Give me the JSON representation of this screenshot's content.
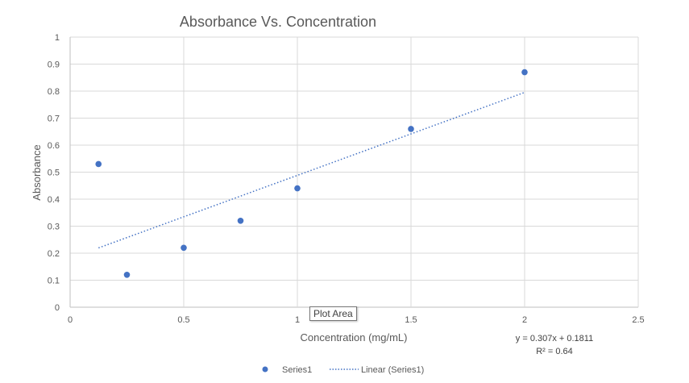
{
  "chart_data": {
    "type": "scatter",
    "title": "Absorbance Vs. Concentration",
    "xlabel": "Concentration (mg/mL)",
    "ylabel": "Absorbance",
    "xlim": [
      0,
      2.5
    ],
    "ylim": [
      0,
      1
    ],
    "x_ticks": [
      "0",
      "0.5",
      "1",
      "1.5",
      "2",
      "2.5"
    ],
    "y_ticks": [
      "0",
      "0.1",
      "0.2",
      "0.3",
      "0.4",
      "0.5",
      "0.6",
      "0.7",
      "0.8",
      "0.9",
      "1"
    ],
    "grid": true,
    "legend_position": "bottom",
    "series": [
      {
        "name": "Series1",
        "color": "#4472C4",
        "x": [
          0.125,
          0.25,
          0.5,
          0.75,
          1.0,
          1.5,
          2.0
        ],
        "y": [
          0.53,
          0.12,
          0.22,
          0.32,
          0.44,
          0.66,
          0.87
        ]
      }
    ],
    "trendline": {
      "name": "Linear (Series1)",
      "type": "linear",
      "slope": 0.307,
      "intercept": 0.1811,
      "x_range": [
        0.125,
        2.0
      ],
      "color": "#4472C4",
      "style": "dotted",
      "equation_label": "y = 0.307x + 0.1811",
      "r2_label": "R² = 0.64"
    }
  },
  "tooltip": {
    "text": "Plot Area"
  }
}
